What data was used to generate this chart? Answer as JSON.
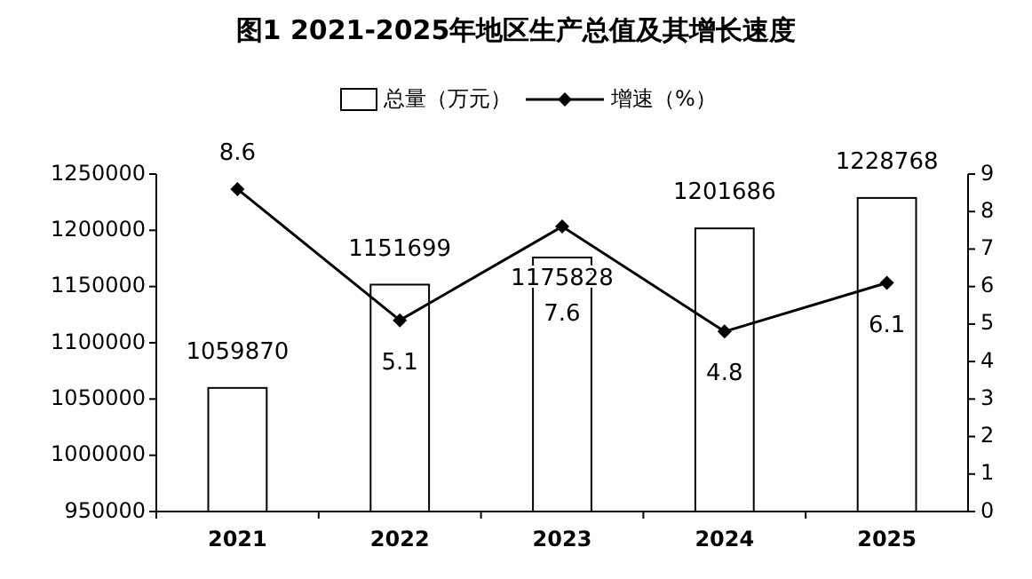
{
  "chart_data": {
    "type": "bar",
    "title": "图1   2021-2025年地区生产总值及其增长速度",
    "categories": [
      "2021",
      "2022",
      "2023",
      "2024",
      "2025"
    ],
    "series": [
      {
        "name": "总量（万元）",
        "color": "#ffffff",
        "values": [
          1059870,
          1151699,
          1175828,
          1201686,
          1228768
        ]
      },
      {
        "name": "增速（%）",
        "type": "line",
        "axis": "y2",
        "color": "#000000",
        "marker": "diamond",
        "values": [
          8.6,
          5.1,
          7.6,
          4.8,
          6.1
        ]
      }
    ],
    "ylim": [
      950000,
      1250000
    ],
    "yticks": [
      950000,
      1000000,
      1050000,
      1100000,
      1150000,
      1200000,
      1250000
    ],
    "y2lim": [
      0,
      9
    ],
    "y2ticks": [
      0,
      1,
      2,
      3,
      4,
      5,
      6,
      7,
      8,
      9
    ],
    "data_labels": true,
    "legend": "top",
    "grid": false
  }
}
